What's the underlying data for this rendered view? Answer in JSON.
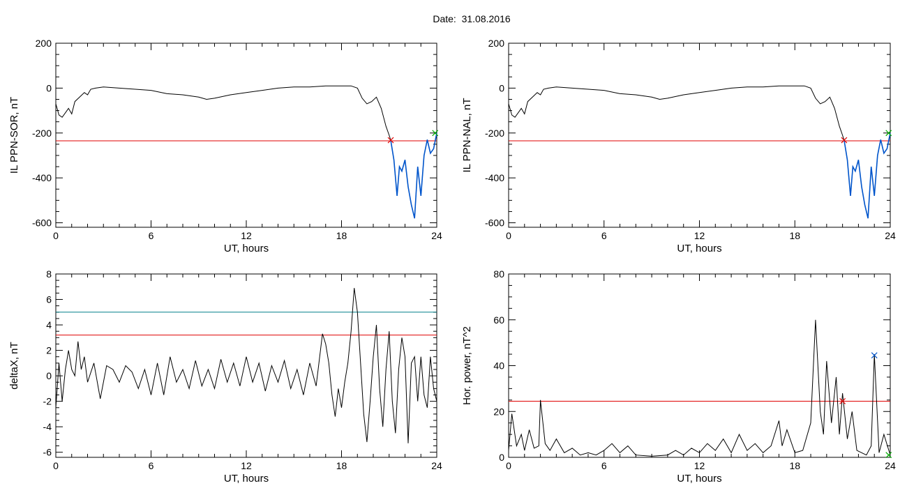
{
  "header": {
    "date_label": "Date:",
    "date_value": "31.08.2016"
  },
  "colors": {
    "trace": "#000000",
    "threshold": "#e00000",
    "highlight": "#0055cc",
    "teal_line": "#00808a",
    "green_marker": "#00aa00"
  },
  "chart_data": [
    {
      "id": "il-sor",
      "type": "line",
      "xlabel": "UT, hours",
      "ylabel": "IL PPN-SOR, nT",
      "xlim": [
        0,
        24
      ],
      "ylim": [
        -620,
        200
      ],
      "xticks": [
        0,
        6,
        12,
        18,
        24
      ],
      "yticks": [
        -600,
        -400,
        -200,
        0,
        200
      ],
      "threshold": -235,
      "marker_red": {
        "x": 21.1,
        "y": -232
      },
      "marker_green": {
        "x": 23.9,
        "y": -200
      },
      "x": [
        0,
        0.2,
        0.4,
        0.6,
        0.8,
        1.0,
        1.2,
        1.5,
        1.8,
        2.0,
        2.2,
        2.5,
        3,
        4,
        5,
        6,
        7,
        8,
        9,
        9.5,
        10,
        11,
        12,
        13,
        14,
        15,
        16,
        17,
        18,
        18.6,
        19,
        19.3,
        19.6,
        19.9,
        20.2,
        20.5,
        20.8,
        21.0,
        21.1,
        21.3,
        21.5,
        21.65,
        21.8,
        22.0,
        22.2,
        22.4,
        22.6,
        22.8,
        23.0,
        23.2,
        23.4,
        23.6,
        23.8,
        24
      ],
      "values": [
        -70,
        -120,
        -130,
        -110,
        -90,
        -115,
        -60,
        -40,
        -20,
        -30,
        -5,
        0,
        5,
        0,
        -5,
        -10,
        -25,
        -30,
        -40,
        -50,
        -45,
        -30,
        -20,
        -10,
        0,
        5,
        5,
        10,
        10,
        10,
        0,
        -45,
        -70,
        -60,
        -40,
        -90,
        -170,
        -210,
        -232,
        -320,
        -480,
        -350,
        -370,
        -320,
        -440,
        -520,
        -580,
        -350,
        -480,
        -300,
        -230,
        -290,
        -270,
        -200
      ]
    },
    {
      "id": "il-nal",
      "type": "line",
      "xlabel": "UT, hours",
      "ylabel": "IL PPN-NAL, nT",
      "xlim": [
        0,
        24
      ],
      "ylim": [
        -620,
        200
      ],
      "xticks": [
        0,
        6,
        12,
        18,
        24
      ],
      "yticks": [
        -600,
        -400,
        -200,
        0,
        200
      ],
      "threshold": -235,
      "marker_red": {
        "x": 21.1,
        "y": -232
      },
      "marker_green": {
        "x": 23.9,
        "y": -200
      },
      "x": [
        0,
        0.2,
        0.4,
        0.6,
        0.8,
        1.0,
        1.2,
        1.5,
        1.8,
        2.0,
        2.2,
        2.5,
        3,
        4,
        5,
        6,
        7,
        8,
        9,
        9.5,
        10,
        11,
        12,
        13,
        14,
        15,
        16,
        17,
        18,
        18.6,
        19,
        19.3,
        19.6,
        19.9,
        20.2,
        20.5,
        20.8,
        21.0,
        21.1,
        21.3,
        21.5,
        21.65,
        21.8,
        22.0,
        22.2,
        22.4,
        22.6,
        22.8,
        23.0,
        23.2,
        23.4,
        23.6,
        23.8,
        24
      ],
      "values": [
        -70,
        -120,
        -130,
        -110,
        -90,
        -115,
        -60,
        -40,
        -20,
        -30,
        -5,
        0,
        5,
        0,
        -5,
        -10,
        -25,
        -30,
        -40,
        -50,
        -45,
        -30,
        -20,
        -10,
        0,
        5,
        5,
        10,
        10,
        10,
        0,
        -45,
        -70,
        -60,
        -40,
        -90,
        -170,
        -210,
        -232,
        -320,
        -480,
        -350,
        -370,
        -320,
        -440,
        -520,
        -580,
        -350,
        -480,
        -300,
        -230,
        -290,
        -270,
        -200
      ]
    },
    {
      "id": "delta-x",
      "type": "line",
      "xlabel": "UT, hours",
      "ylabel": "deltaX, nT",
      "xlim": [
        0,
        24
      ],
      "ylim": [
        -6.4,
        8
      ],
      "xticks": [
        0,
        6,
        12,
        18,
        24
      ],
      "yticks": [
        -6,
        -4,
        -2,
        0,
        2,
        4,
        6,
        8
      ],
      "hlines": [
        {
          "y": 5.0,
          "color": "#00808a"
        },
        {
          "y": 3.2,
          "color": "#e00000"
        }
      ],
      "x": [
        0,
        0.2,
        0.4,
        0.6,
        0.8,
        1.0,
        1.2,
        1.4,
        1.6,
        1.8,
        2.0,
        2.4,
        2.8,
        3.2,
        3.6,
        4.0,
        4.4,
        4.8,
        5.2,
        5.6,
        6.0,
        6.4,
        6.8,
        7.2,
        7.6,
        8.0,
        8.4,
        8.8,
        9.2,
        9.6,
        10.0,
        10.4,
        10.8,
        11.2,
        11.6,
        12.0,
        12.4,
        12.8,
        13.2,
        13.6,
        14.0,
        14.4,
        14.8,
        15.2,
        15.6,
        16.0,
        16.4,
        16.8,
        17.0,
        17.2,
        17.4,
        17.6,
        17.8,
        18.0,
        18.2,
        18.4,
        18.6,
        18.8,
        19.0,
        19.2,
        19.4,
        19.6,
        19.8,
        20.0,
        20.2,
        20.4,
        20.6,
        20.8,
        21.0,
        21.2,
        21.4,
        21.6,
        21.8,
        22.0,
        22.2,
        22.4,
        22.6,
        22.8,
        23.0,
        23.2,
        23.4,
        23.6,
        23.8,
        24.0
      ],
      "values": [
        -2.5,
        1.0,
        -2.0,
        0.5,
        2.0,
        0.5,
        0.0,
        2.7,
        0.5,
        1.5,
        -0.5,
        1.0,
        -1.8,
        0.8,
        0.5,
        -0.5,
        0.8,
        0.3,
        -1.0,
        0.5,
        -1.5,
        1.0,
        -1.5,
        1.5,
        -0.5,
        0.5,
        -1.0,
        1.2,
        -0.8,
        0.5,
        -1.0,
        1.3,
        -0.5,
        1.0,
        -0.8,
        1.5,
        -0.5,
        1.0,
        -1.2,
        0.8,
        -0.5,
        1.2,
        -1.0,
        0.5,
        -1.5,
        1.0,
        -0.8,
        3.3,
        2.5,
        1.0,
        -1.5,
        -3.2,
        -1.0,
        -2.5,
        -0.5,
        1.0,
        3.5,
        6.9,
        5.0,
        1.0,
        -3.0,
        -5.2,
        -2.0,
        1.5,
        4.0,
        -1.0,
        -4.0,
        0.5,
        3.5,
        -2.0,
        -4.5,
        0.5,
        3.0,
        1.5,
        -5.3,
        1.0,
        1.5,
        -2.0,
        1.5,
        -1.5,
        -2.5,
        1.5,
        -1.0,
        -2.0
      ]
    },
    {
      "id": "hor-power",
      "type": "line",
      "xlabel": "UT, hours",
      "ylabel": "Hor. power, nT^2",
      "xlim": [
        0,
        24
      ],
      "ylim": [
        0,
        80
      ],
      "xticks": [
        0,
        6,
        12,
        18,
        24
      ],
      "yticks": [
        0,
        20,
        40,
        60,
        80
      ],
      "threshold": 24.5,
      "marker_red": {
        "x": 21.0,
        "y": 24.5
      },
      "marker_blue": {
        "x": 23.0,
        "y": 44.5
      },
      "marker_green": {
        "x": 23.9,
        "y": 1
      },
      "x": [
        0,
        0.2,
        0.5,
        0.8,
        1.0,
        1.3,
        1.6,
        1.9,
        2.0,
        2.3,
        2.6,
        3.0,
        3.5,
        4.0,
        4.5,
        5.0,
        5.5,
        6.0,
        6.5,
        7.0,
        7.5,
        8.0,
        9.0,
        10.0,
        10.5,
        11.0,
        11.5,
        12.0,
        12.5,
        13.0,
        13.5,
        14.0,
        14.5,
        15.0,
        15.5,
        16.0,
        16.5,
        17.0,
        17.2,
        17.5,
        18.0,
        18.5,
        19.0,
        19.3,
        19.6,
        19.8,
        20.0,
        20.3,
        20.6,
        20.8,
        21.0,
        21.3,
        21.6,
        21.9,
        22.2,
        22.5,
        22.8,
        23.0,
        23.3,
        23.6,
        24.0
      ],
      "values": [
        3,
        19,
        5,
        10,
        3,
        12,
        4,
        5,
        25,
        6,
        3,
        8,
        2,
        4,
        1,
        2,
        1,
        3,
        6,
        2,
        5,
        1,
        0.5,
        1,
        3,
        1,
        4,
        2,
        6,
        3,
        8,
        2,
        10,
        3,
        6,
        2,
        5,
        16,
        5,
        12,
        2,
        3,
        15,
        60,
        20,
        10,
        42,
        15,
        35,
        10,
        28,
        8,
        20,
        3,
        2,
        1,
        5,
        45,
        2,
        10,
        1
      ]
    }
  ]
}
